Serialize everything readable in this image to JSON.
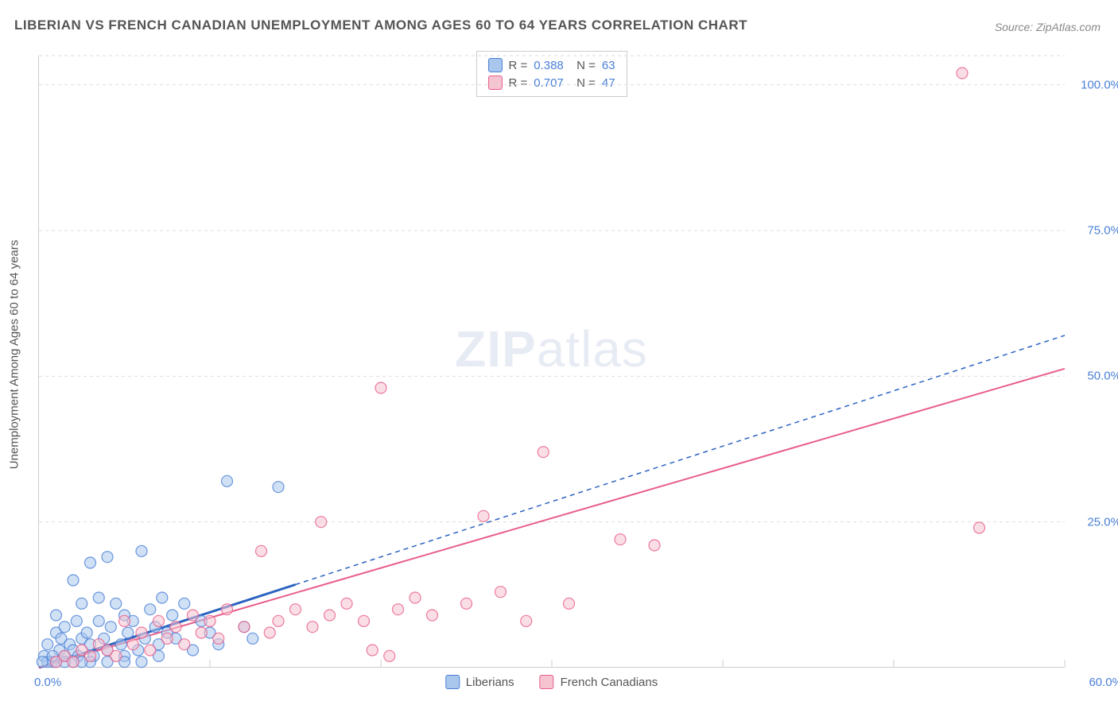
{
  "title": "LIBERIAN VS FRENCH CANADIAN UNEMPLOYMENT AMONG AGES 60 TO 64 YEARS CORRELATION CHART",
  "source": "Source: ZipAtlas.com",
  "watermark_prefix": "ZIP",
  "watermark_suffix": "atlas",
  "y_axis_label": "Unemployment Among Ages 60 to 64 years",
  "x_axis": {
    "min": 0,
    "max": 60,
    "min_label": "0.0%",
    "max_label": "60.0%",
    "tick_step": 10
  },
  "y_axis": {
    "min": 0,
    "max": 105,
    "ticks": [
      25,
      50,
      75,
      100
    ],
    "tick_labels": [
      "25.0%",
      "50.0%",
      "75.0%",
      "100.0%"
    ]
  },
  "colors": {
    "blue_fill": "#a9c7ec",
    "blue_stroke": "#4a7fd6",
    "pink_fill": "#f6c3d0",
    "pink_stroke": "#e85d8a",
    "grid": "#dddddd",
    "axis": "#cccccc",
    "label_blue": "#4a7fd6",
    "label_grey": "#555555",
    "trend_blue": "#2b63c0",
    "trend_pink": "#e85d8a"
  },
  "series": [
    {
      "name": "Liberians",
      "label": "Liberians",
      "R": 0.388,
      "N": 63,
      "fill": "#a9c7ec",
      "stroke": "#4a7fd6",
      "marker_radius": 7,
      "marker_opacity": 0.55,
      "trend": {
        "type": "solid_then_dashed",
        "solid_to_x": 15,
        "slope": 0.95,
        "intercept": 0,
        "color": "#2b63c0",
        "width": 2
      },
      "points": [
        [
          0.3,
          2
        ],
        [
          0.5,
          4
        ],
        [
          0.8,
          1
        ],
        [
          1,
          6
        ],
        [
          1,
          9
        ],
        [
          1.2,
          3
        ],
        [
          1.3,
          5
        ],
        [
          1.5,
          2
        ],
        [
          1.5,
          7
        ],
        [
          1.8,
          4
        ],
        [
          2,
          15
        ],
        [
          2,
          3
        ],
        [
          2.2,
          8
        ],
        [
          2.3,
          2
        ],
        [
          2.5,
          5
        ],
        [
          2.5,
          11
        ],
        [
          2.8,
          6
        ],
        [
          3,
          4
        ],
        [
          3,
          18
        ],
        [
          3.2,
          2
        ],
        [
          3.5,
          8
        ],
        [
          3.5,
          12
        ],
        [
          3.8,
          5
        ],
        [
          4,
          3
        ],
        [
          4,
          19
        ],
        [
          4.2,
          7
        ],
        [
          4.5,
          11
        ],
        [
          4.8,
          4
        ],
        [
          5,
          9
        ],
        [
          5,
          2
        ],
        [
          5.2,
          6
        ],
        [
          5.5,
          8
        ],
        [
          5.8,
          3
        ],
        [
          6,
          20
        ],
        [
          6.2,
          5
        ],
        [
          6.5,
          10
        ],
        [
          6.8,
          7
        ],
        [
          7,
          4
        ],
        [
          7.2,
          12
        ],
        [
          7.5,
          6
        ],
        [
          7.8,
          9
        ],
        [
          8,
          5
        ],
        [
          8.5,
          11
        ],
        [
          9,
          3
        ],
        [
          9.5,
          8
        ],
        [
          10,
          6
        ],
        [
          10.5,
          4
        ],
        [
          11,
          32
        ],
        [
          12,
          7
        ],
        [
          12.5,
          5
        ],
        [
          14,
          31
        ],
        [
          5,
          1
        ],
        [
          6,
          1
        ],
        [
          7,
          2
        ],
        [
          2,
          1
        ],
        [
          3,
          1
        ],
        [
          0.5,
          1
        ],
        [
          1,
          1
        ],
        [
          4,
          1
        ],
        [
          0.2,
          1
        ],
        [
          0.8,
          2
        ],
        [
          1.5,
          1
        ],
        [
          2.5,
          1
        ]
      ]
    },
    {
      "name": "French Canadians",
      "label": "French Canadians",
      "R": 0.707,
      "N": 47,
      "fill": "#f6c3d0",
      "stroke": "#e85d8a",
      "marker_radius": 7,
      "marker_opacity": 0.55,
      "trend": {
        "type": "solid",
        "slope": 0.88,
        "intercept": -1.5,
        "color": "#e85d8a",
        "width": 2
      },
      "points": [
        [
          1,
          1
        ],
        [
          1.5,
          2
        ],
        [
          2,
          1
        ],
        [
          2.5,
          3
        ],
        [
          3,
          2
        ],
        [
          3.5,
          4
        ],
        [
          4,
          3
        ],
        [
          4.5,
          2
        ],
        [
          5,
          8
        ],
        [
          5.5,
          4
        ],
        [
          6,
          6
        ],
        [
          6.5,
          3
        ],
        [
          7,
          8
        ],
        [
          7.5,
          5
        ],
        [
          8,
          7
        ],
        [
          8.5,
          4
        ],
        [
          9,
          9
        ],
        [
          9.5,
          6
        ],
        [
          10,
          8
        ],
        [
          10.5,
          5
        ],
        [
          11,
          10
        ],
        [
          12,
          7
        ],
        [
          13,
          20
        ],
        [
          14,
          8
        ],
        [
          15,
          10
        ],
        [
          16,
          7
        ],
        [
          16.5,
          25
        ],
        [
          17,
          9
        ],
        [
          18,
          11
        ],
        [
          19,
          8
        ],
        [
          20,
          48
        ],
        [
          20.5,
          2
        ],
        [
          21,
          10
        ],
        [
          22,
          12
        ],
        [
          23,
          9
        ],
        [
          25,
          11
        ],
        [
          26,
          26
        ],
        [
          27,
          13
        ],
        [
          28.5,
          8
        ],
        [
          29.5,
          37
        ],
        [
          31,
          11
        ],
        [
          34,
          22
        ],
        [
          36,
          21
        ],
        [
          55,
          24
        ],
        [
          54,
          102
        ],
        [
          13.5,
          6
        ],
        [
          19.5,
          3
        ]
      ]
    }
  ]
}
